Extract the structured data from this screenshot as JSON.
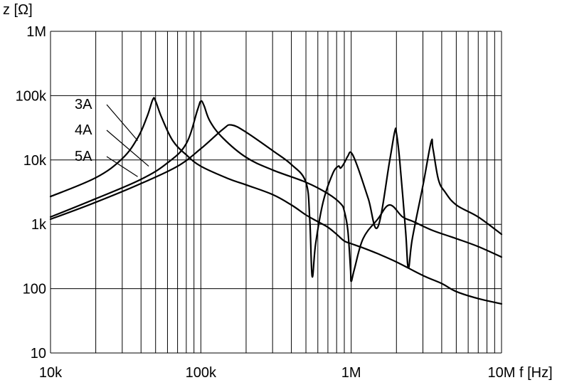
{
  "chart_data": {
    "type": "line",
    "title": "",
    "xlabel": "f [Hz]",
    "ylabel": "z [Ω]",
    "x_scale": "log",
    "y_scale": "log",
    "xlim": [
      10000,
      10000000
    ],
    "ylim": [
      10,
      1000000
    ],
    "grid": true,
    "x_ticks": [
      {
        "value": 10000,
        "label": "10k"
      },
      {
        "value": 100000,
        "label": "100k"
      },
      {
        "value": 1000000,
        "label": "1M"
      },
      {
        "value": 10000000,
        "label": "10M"
      }
    ],
    "y_ticks": [
      {
        "value": 10,
        "label": "10"
      },
      {
        "value": 100,
        "label": "100"
      },
      {
        "value": 1000,
        "label": "1k"
      },
      {
        "value": 10000,
        "label": "10k"
      },
      {
        "value": 100000,
        "label": "100k"
      },
      {
        "value": 1000000,
        "label": "1M"
      }
    ],
    "series": [
      {
        "name": "3A",
        "points": [
          [
            10000,
            2700
          ],
          [
            20000,
            5300
          ],
          [
            30000,
            10500
          ],
          [
            38000,
            22000
          ],
          [
            44000,
            48000
          ],
          [
            48000,
            88000
          ],
          [
            50000,
            82000
          ],
          [
            55000,
            45000
          ],
          [
            65000,
            20000
          ],
          [
            80000,
            12000
          ],
          [
            100000,
            8000
          ],
          [
            150000,
            5200
          ],
          [
            200000,
            4100
          ],
          [
            300000,
            2900
          ],
          [
            400000,
            2000
          ],
          [
            500000,
            1400
          ],
          [
            600000,
            1100
          ],
          [
            700000,
            900
          ],
          [
            800000,
            700
          ],
          [
            900000,
            550
          ],
          [
            1000000,
            500
          ],
          [
            1200000,
            430
          ],
          [
            1500000,
            350
          ],
          [
            2000000,
            260
          ],
          [
            3000000,
            160
          ],
          [
            4000000,
            120
          ],
          [
            5000000,
            90
          ],
          [
            7000000,
            70
          ],
          [
            10000000,
            58
          ]
        ],
        "label_anchor": [
          38000,
          20000
        ]
      },
      {
        "name": "4A",
        "points": [
          [
            10000,
            1300
          ],
          [
            20000,
            2500
          ],
          [
            40000,
            5000
          ],
          [
            60000,
            9000
          ],
          [
            80000,
            18000
          ],
          [
            95000,
            60000
          ],
          [
            100000,
            82000
          ],
          [
            105000,
            70000
          ],
          [
            115000,
            40000
          ],
          [
            140000,
            22000
          ],
          [
            200000,
            11000
          ],
          [
            300000,
            7000
          ],
          [
            500000,
            4500
          ],
          [
            700000,
            3000
          ],
          [
            850000,
            2100
          ],
          [
            900000,
            1600
          ],
          [
            950000,
            800
          ],
          [
            990000,
            200
          ],
          [
            1000000,
            130
          ],
          [
            1050000,
            200
          ],
          [
            1200000,
            600
          ],
          [
            1500000,
            1200
          ],
          [
            1800000,
            2000
          ],
          [
            2200000,
            1300
          ],
          [
            2600000,
            1100
          ],
          [
            3500000,
            800
          ],
          [
            5000000,
            600
          ],
          [
            7000000,
            450
          ],
          [
            10000000,
            310
          ]
        ],
        "label_anchor": [
          45000,
          8000
        ]
      },
      {
        "name": "5A",
        "points": [
          [
            10000,
            1200
          ],
          [
            20000,
            2200
          ],
          [
            40000,
            4300
          ],
          [
            70000,
            8000
          ],
          [
            100000,
            15000
          ],
          [
            140000,
            30000
          ],
          [
            160000,
            35000
          ],
          [
            200000,
            27000
          ],
          [
            300000,
            14000
          ],
          [
            400000,
            8500
          ],
          [
            500000,
            4500
          ],
          [
            530000,
            1200
          ],
          [
            550000,
            155
          ],
          [
            580000,
            500
          ],
          [
            650000,
            2200
          ],
          [
            750000,
            6000
          ],
          [
            820000,
            8000
          ],
          [
            850000,
            7500
          ],
          [
            900000,
            9000
          ],
          [
            950000,
            11500
          ],
          [
            1000000,
            13000
          ],
          [
            1100000,
            8000
          ],
          [
            1300000,
            2500
          ],
          [
            1500000,
            900
          ],
          [
            1800000,
            9500
          ],
          [
            1950000,
            28000
          ],
          [
            2000000,
            26000
          ],
          [
            2100000,
            10000
          ],
          [
            2300000,
            800
          ],
          [
            2400000,
            210
          ],
          [
            2550000,
            600
          ],
          [
            3000000,
            4000
          ],
          [
            3400000,
            19000
          ],
          [
            3500000,
            15000
          ],
          [
            3800000,
            5000
          ],
          [
            4200000,
            3200
          ],
          [
            5000000,
            2000
          ],
          [
            7000000,
            1300
          ],
          [
            10000000,
            700
          ]
        ],
        "label_anchor": [
          38000,
          5500
        ]
      }
    ]
  }
}
